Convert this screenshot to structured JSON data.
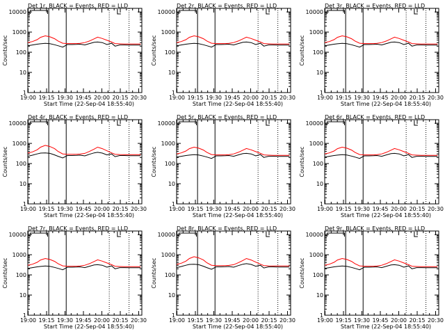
{
  "figure": {
    "x_title": "Start Time (22-Sep-04 18:55:40)",
    "y_title": "Counts/sec",
    "series_colors": {
      "events": "#000000",
      "lld": "#ff0000"
    }
  },
  "chart_data": [
    {
      "type": "line",
      "title": "Det 1r, BLACK = Events, RED = LLD",
      "xlabel": "Start Time (22-Sep-04 18:55:40)",
      "ylabel": "Counts/sec",
      "x_ticks": [
        "19:00",
        "19:15",
        "19:30",
        "19:45",
        "20:00",
        "20:15",
        "20:30"
      ],
      "y_ticks": [
        "1",
        "10",
        "100",
        "1000",
        "10000"
      ],
      "xlim": [
        0,
        98
      ],
      "ylim": [
        1,
        15000
      ],
      "y_scale": "log",
      "grid": false,
      "x": [
        0,
        4,
        8,
        11,
        15,
        19,
        23,
        26,
        30,
        34,
        38,
        42,
        45,
        49,
        53,
        57,
        60,
        64,
        68,
        72,
        75,
        79,
        83,
        87,
        90,
        94,
        97
      ],
      "series": [
        {
          "color": "#000000",
          "values": [
            210,
            230,
            250,
            262,
            275,
            265,
            235,
            210,
            180,
            240,
            240,
            245,
            250,
            230,
            270,
            310,
            320,
            300,
            240,
            280,
            200,
            230,
            230,
            225,
            225,
            225,
            225
          ]
        },
        {
          "color": "#ff0000",
          "values": [
            300,
            340,
            420,
            550,
            650,
            580,
            470,
            360,
            280,
            270,
            270,
            270,
            275,
            300,
            360,
            460,
            560,
            480,
            390,
            320,
            270,
            260,
            255,
            255,
            255,
            255,
            255
          ]
        }
      ]
    },
    {
      "type": "line",
      "title": "Det 2r, BLACK = Events, RED = LLD",
      "xlabel": "Start Time (22-Sep-04 18:55:40)",
      "ylabel": "Counts/sec",
      "x_ticks": [
        "19:00",
        "19:15",
        "19:30",
        "19:45",
        "20:00",
        "20:15",
        "20:30"
      ],
      "y_ticks": [
        "1",
        "10",
        "100",
        "1000",
        "10000"
      ],
      "xlim": [
        0,
        98
      ],
      "ylim": [
        1,
        15000
      ],
      "y_scale": "log",
      "grid": false,
      "x": [
        0,
        4,
        8,
        11,
        15,
        19,
        23,
        26,
        30,
        34,
        38,
        42,
        45,
        49,
        53,
        57,
        60,
        64,
        68,
        72,
        75,
        79,
        83,
        87,
        90,
        94,
        97
      ],
      "series": [
        {
          "color": "#000000",
          "values": [
            210,
            230,
            250,
            262,
            275,
            265,
            235,
            210,
            180,
            240,
            240,
            245,
            250,
            230,
            270,
            310,
            320,
            300,
            240,
            280,
            200,
            230,
            230,
            225,
            225,
            225,
            225
          ]
        },
        {
          "color": "#ff0000",
          "values": [
            300,
            340,
            420,
            550,
            650,
            580,
            470,
            360,
            280,
            270,
            270,
            270,
            275,
            300,
            360,
            460,
            560,
            480,
            390,
            320,
            270,
            260,
            255,
            255,
            255,
            255,
            255
          ]
        }
      ]
    },
    {
      "type": "line",
      "title": "Det 3r, BLACK = Events, RED = LLD",
      "xlabel": "Start Time (22-Sep-04 18:55:40)",
      "ylabel": "Counts/sec",
      "x_ticks": [
        "19:00",
        "19:15",
        "19:30",
        "19:45",
        "20:00",
        "20:15",
        "20:30"
      ],
      "y_ticks": [
        "1",
        "10",
        "100",
        "1000",
        "10000"
      ],
      "xlim": [
        0,
        98
      ],
      "ylim": [
        1,
        15000
      ],
      "y_scale": "log",
      "grid": false,
      "x": [
        0,
        4,
        8,
        11,
        15,
        19,
        23,
        26,
        30,
        34,
        38,
        42,
        45,
        49,
        53,
        57,
        60,
        64,
        68,
        72,
        75,
        79,
        83,
        87,
        90,
        94,
        97
      ],
      "series": [
        {
          "color": "#000000",
          "values": [
            210,
            230,
            250,
            262,
            275,
            265,
            235,
            210,
            180,
            240,
            240,
            245,
            250,
            230,
            270,
            310,
            320,
            300,
            240,
            280,
            200,
            230,
            230,
            225,
            225,
            225,
            225
          ]
        },
        {
          "color": "#ff0000",
          "values": [
            300,
            340,
            420,
            550,
            650,
            580,
            470,
            360,
            280,
            270,
            270,
            270,
            275,
            300,
            360,
            460,
            560,
            480,
            390,
            320,
            270,
            260,
            255,
            255,
            255,
            255,
            255
          ]
        }
      ]
    },
    {
      "type": "line",
      "title": "Det 4r, BLACK = Events, RED = LLD",
      "xlabel": "Start Time (22-Sep-04 18:55:40)",
      "ylabel": "Counts/sec",
      "x_ticks": [
        "19:00",
        "19:15",
        "19:30",
        "19:45",
        "20:00",
        "20:15",
        "20:30"
      ],
      "y_ticks": [
        "1",
        "10",
        "100",
        "1000",
        "10000"
      ],
      "xlim": [
        0,
        98
      ],
      "ylim": [
        1,
        15000
      ],
      "y_scale": "log",
      "grid": false,
      "x": [
        0,
        4,
        8,
        11,
        15,
        19,
        23,
        26,
        30,
        34,
        38,
        42,
        45,
        49,
        53,
        57,
        60,
        64,
        68,
        72,
        75,
        79,
        83,
        87,
        90,
        94,
        97
      ],
      "series": [
        {
          "color": "#000000",
          "values": [
            230,
            260,
            300,
            330,
            340,
            320,
            270,
            230,
            190,
            250,
            250,
            255,
            260,
            240,
            290,
            340,
            360,
            330,
            270,
            300,
            220,
            250,
            250,
            245,
            245,
            245,
            245
          ]
        },
        {
          "color": "#ff0000",
          "values": [
            330,
            380,
            480,
            650,
            800,
            700,
            550,
            400,
            300,
            290,
            290,
            290,
            295,
            320,
            400,
            520,
            650,
            550,
            430,
            340,
            290,
            280,
            275,
            275,
            275,
            275,
            275
          ]
        }
      ]
    },
    {
      "type": "line",
      "title": "Det 5r, BLACK = Events, RED = LLD",
      "xlabel": "Start Time (22-Sep-04 18:55:40)",
      "ylabel": "Counts/sec",
      "x_ticks": [
        "19:00",
        "19:15",
        "19:30",
        "19:45",
        "20:00",
        "20:15",
        "20:30"
      ],
      "y_ticks": [
        "1",
        "10",
        "100",
        "1000",
        "10000"
      ],
      "xlim": [
        0,
        98
      ],
      "ylim": [
        1,
        15000
      ],
      "y_scale": "log",
      "grid": false,
      "x": [
        0,
        4,
        8,
        11,
        15,
        19,
        23,
        26,
        30,
        34,
        38,
        42,
        45,
        49,
        53,
        57,
        60,
        64,
        68,
        72,
        75,
        79,
        83,
        87,
        90,
        94,
        97
      ],
      "series": [
        {
          "color": "#000000",
          "values": [
            210,
            230,
            250,
            262,
            275,
            265,
            235,
            210,
            180,
            240,
            240,
            245,
            250,
            230,
            270,
            310,
            320,
            300,
            240,
            280,
            200,
            230,
            230,
            225,
            225,
            225,
            225
          ]
        },
        {
          "color": "#ff0000",
          "values": [
            300,
            340,
            420,
            550,
            650,
            580,
            470,
            360,
            280,
            270,
            270,
            270,
            275,
            300,
            360,
            460,
            560,
            480,
            390,
            320,
            270,
            260,
            255,
            255,
            255,
            255,
            255
          ]
        }
      ]
    },
    {
      "type": "line",
      "title": "Det 6r, BLACK = Events, RED = LLD",
      "xlabel": "Start Time (22-Sep-04 18:55:40)",
      "ylabel": "Counts/sec",
      "x_ticks": [
        "19:00",
        "19:15",
        "19:30",
        "19:45",
        "20:00",
        "20:15",
        "20:30"
      ],
      "y_ticks": [
        "1",
        "10",
        "100",
        "1000",
        "10000"
      ],
      "xlim": [
        0,
        98
      ],
      "ylim": [
        1,
        15000
      ],
      "y_scale": "log",
      "grid": false,
      "x": [
        0,
        4,
        8,
        11,
        15,
        19,
        23,
        26,
        30,
        34,
        38,
        42,
        45,
        49,
        53,
        57,
        60,
        64,
        68,
        72,
        75,
        79,
        83,
        87,
        90,
        94,
        97
      ],
      "series": [
        {
          "color": "#000000",
          "values": [
            210,
            230,
            250,
            262,
            275,
            265,
            235,
            210,
            180,
            240,
            240,
            245,
            250,
            230,
            270,
            310,
            320,
            300,
            240,
            280,
            200,
            230,
            230,
            225,
            225,
            225,
            225
          ]
        },
        {
          "color": "#ff0000",
          "values": [
            300,
            340,
            420,
            550,
            650,
            580,
            470,
            360,
            280,
            270,
            270,
            270,
            275,
            300,
            360,
            460,
            560,
            480,
            390,
            320,
            270,
            260,
            255,
            255,
            255,
            255,
            255
          ]
        }
      ]
    },
    {
      "type": "line",
      "title": "Det 7r, BLACK = Events, RED = LLD",
      "xlabel": "Start Time (22-Sep-04 18:55:40)",
      "ylabel": "Counts/sec",
      "x_ticks": [
        "19:00",
        "19:15",
        "19:30",
        "19:45",
        "20:00",
        "20:15",
        "20:30"
      ],
      "y_ticks": [
        "1",
        "10",
        "100",
        "1000",
        "10000"
      ],
      "xlim": [
        0,
        98
      ],
      "ylim": [
        1,
        15000
      ],
      "y_scale": "log",
      "grid": false,
      "x": [
        0,
        4,
        8,
        11,
        15,
        19,
        23,
        26,
        30,
        34,
        38,
        42,
        45,
        49,
        53,
        57,
        60,
        64,
        68,
        72,
        75,
        79,
        83,
        87,
        90,
        94,
        97
      ],
      "series": [
        {
          "color": "#000000",
          "values": [
            210,
            230,
            250,
            262,
            275,
            265,
            235,
            210,
            180,
            240,
            240,
            245,
            250,
            230,
            270,
            310,
            320,
            300,
            240,
            280,
            200,
            230,
            230,
            225,
            225,
            225,
            225
          ]
        },
        {
          "color": "#ff0000",
          "values": [
            300,
            340,
            420,
            550,
            650,
            580,
            470,
            360,
            280,
            270,
            270,
            270,
            275,
            300,
            360,
            460,
            560,
            480,
            390,
            320,
            270,
            260,
            255,
            255,
            255,
            255,
            255
          ]
        }
      ]
    },
    {
      "type": "line",
      "title": "Det 8r, BLACK = Events, RED = LLD",
      "xlabel": "Start Time (22-Sep-04 18:55:40)",
      "ylabel": "Counts/sec",
      "x_ticks": [
        "19:00",
        "19:15",
        "19:30",
        "19:45",
        "20:00",
        "20:15",
        "20:30"
      ],
      "y_ticks": [
        "1",
        "10",
        "100",
        "1000",
        "10000"
      ],
      "xlim": [
        0,
        98
      ],
      "ylim": [
        1,
        15000
      ],
      "y_scale": "log",
      "grid": false,
      "x": [
        0,
        4,
        8,
        11,
        15,
        19,
        23,
        26,
        30,
        34,
        38,
        42,
        45,
        49,
        53,
        57,
        60,
        64,
        68,
        72,
        75,
        79,
        83,
        87,
        90,
        94,
        97
      ],
      "series": [
        {
          "color": "#000000",
          "values": [
            230,
            260,
            300,
            330,
            340,
            320,
            270,
            230,
            190,
            250,
            250,
            255,
            260,
            240,
            290,
            340,
            360,
            330,
            270,
            300,
            220,
            250,
            250,
            245,
            245,
            245,
            245
          ]
        },
        {
          "color": "#ff0000",
          "values": [
            330,
            380,
            480,
            650,
            800,
            700,
            550,
            400,
            300,
            290,
            290,
            290,
            295,
            320,
            400,
            520,
            650,
            550,
            430,
            340,
            290,
            280,
            275,
            275,
            275,
            275,
            275
          ]
        }
      ]
    },
    {
      "type": "line",
      "title": "Det 9r, BLACK = Events, RED = LLD",
      "xlabel": "Start Time (22-Sep-04 18:55:40)",
      "ylabel": "Counts/sec",
      "x_ticks": [
        "19:00",
        "19:15",
        "19:30",
        "19:45",
        "20:00",
        "20:15",
        "20:30"
      ],
      "y_ticks": [
        "1",
        "10",
        "100",
        "1000",
        "10000"
      ],
      "xlim": [
        0,
        98
      ],
      "ylim": [
        1,
        15000
      ],
      "y_scale": "log",
      "grid": false,
      "x": [
        0,
        4,
        8,
        11,
        15,
        19,
        23,
        26,
        30,
        34,
        38,
        42,
        45,
        49,
        53,
        57,
        60,
        64,
        68,
        72,
        75,
        79,
        83,
        87,
        90,
        94,
        97
      ],
      "series": [
        {
          "color": "#000000",
          "values": [
            210,
            230,
            250,
            262,
            275,
            265,
            235,
            210,
            180,
            240,
            240,
            245,
            250,
            230,
            270,
            310,
            320,
            300,
            240,
            280,
            200,
            230,
            230,
            225,
            225,
            225,
            225
          ]
        },
        {
          "color": "#ff0000",
          "values": [
            300,
            340,
            420,
            550,
            650,
            580,
            470,
            360,
            280,
            270,
            270,
            270,
            275,
            300,
            360,
            460,
            560,
            480,
            390,
            320,
            270,
            260,
            255,
            255,
            255,
            255,
            255
          ]
        }
      ]
    }
  ],
  "markers": {
    "solid_x": [
      18,
      33
    ],
    "dotted_x": [
      70,
      87
    ],
    "bracket_x": [
      2,
      17
    ],
    "top_tick_x": [
      77,
      80
    ]
  }
}
